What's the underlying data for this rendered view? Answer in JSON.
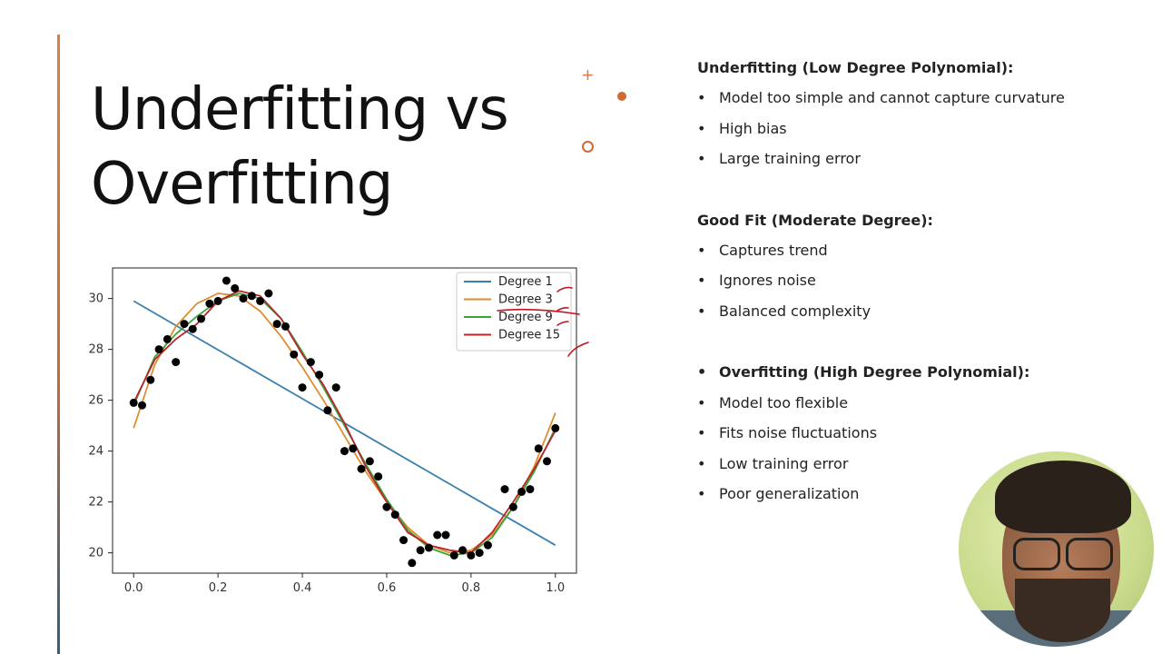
{
  "slide": {
    "title_line1": "Underfitting vs",
    "title_line2": "Overfitting"
  },
  "decorations": {
    "plus_icon": "+",
    "accent_color": "#d9824b"
  },
  "bullets": {
    "bullet_char": "•",
    "sections": [
      {
        "heading": "Underfitting (Low Degree Polynomial):",
        "items": [
          "Model too simple and cannot capture curvature",
          "High bias",
          "Large training error"
        ]
      },
      {
        "heading": "Good Fit (Moderate Degree):",
        "items": [
          "Captures trend",
          "Ignores noise",
          "Balanced complexity"
        ]
      },
      {
        "heading": "Overfitting (High Degree Polynomial):",
        "heading_is_bullet": true,
        "items": [
          "Model too flexible",
          "Fits noise fluctuations",
          "Low training error",
          "Poor generalization"
        ]
      }
    ]
  },
  "chart_data": {
    "type": "scatter",
    "title": "",
    "xlabel": "",
    "ylabel": "",
    "xlim": [
      -0.05,
      1.05
    ],
    "ylim": [
      19.2,
      31.2
    ],
    "x_ticks": [
      "0.0",
      "0.2",
      "0.4",
      "0.6",
      "0.8",
      "1.0"
    ],
    "y_ticks": [
      "20",
      "22",
      "24",
      "26",
      "28",
      "30"
    ],
    "legend_position": "top-right",
    "points": [
      {
        "x": 0.0,
        "y": 25.9
      },
      {
        "x": 0.02,
        "y": 25.8
      },
      {
        "x": 0.04,
        "y": 26.8
      },
      {
        "x": 0.06,
        "y": 28.0
      },
      {
        "x": 0.08,
        "y": 28.4
      },
      {
        "x": 0.1,
        "y": 27.5
      },
      {
        "x": 0.12,
        "y": 29.0
      },
      {
        "x": 0.14,
        "y": 28.8
      },
      {
        "x": 0.16,
        "y": 29.2
      },
      {
        "x": 0.18,
        "y": 29.8
      },
      {
        "x": 0.2,
        "y": 29.9
      },
      {
        "x": 0.22,
        "y": 30.7
      },
      {
        "x": 0.24,
        "y": 30.4
      },
      {
        "x": 0.26,
        "y": 30.0
      },
      {
        "x": 0.28,
        "y": 30.1
      },
      {
        "x": 0.3,
        "y": 29.9
      },
      {
        "x": 0.32,
        "y": 30.2
      },
      {
        "x": 0.34,
        "y": 29.0
      },
      {
        "x": 0.36,
        "y": 28.9
      },
      {
        "x": 0.38,
        "y": 27.8
      },
      {
        "x": 0.4,
        "y": 26.5
      },
      {
        "x": 0.42,
        "y": 27.5
      },
      {
        "x": 0.44,
        "y": 27.0
      },
      {
        "x": 0.46,
        "y": 25.6
      },
      {
        "x": 0.48,
        "y": 26.5
      },
      {
        "x": 0.5,
        "y": 24.0
      },
      {
        "x": 0.52,
        "y": 24.1
      },
      {
        "x": 0.54,
        "y": 23.3
      },
      {
        "x": 0.56,
        "y": 23.6
      },
      {
        "x": 0.58,
        "y": 23.0
      },
      {
        "x": 0.6,
        "y": 21.8
      },
      {
        "x": 0.62,
        "y": 21.5
      },
      {
        "x": 0.64,
        "y": 20.5
      },
      {
        "x": 0.66,
        "y": 19.6
      },
      {
        "x": 0.68,
        "y": 20.1
      },
      {
        "x": 0.7,
        "y": 20.2
      },
      {
        "x": 0.72,
        "y": 20.7
      },
      {
        "x": 0.74,
        "y": 20.7
      },
      {
        "x": 0.76,
        "y": 19.9
      },
      {
        "x": 0.78,
        "y": 20.1
      },
      {
        "x": 0.8,
        "y": 19.9
      },
      {
        "x": 0.82,
        "y": 20.0
      },
      {
        "x": 0.84,
        "y": 20.3
      },
      {
        "x": 0.88,
        "y": 22.5
      },
      {
        "x": 0.9,
        "y": 21.8
      },
      {
        "x": 0.92,
        "y": 22.4
      },
      {
        "x": 0.94,
        "y": 22.5
      },
      {
        "x": 0.96,
        "y": 24.1
      },
      {
        "x": 0.98,
        "y": 23.6
      },
      {
        "x": 1.0,
        "y": 24.9
      }
    ],
    "series": [
      {
        "name": "Degree 1",
        "color": "#3b80ad",
        "x": [
          0.0,
          1.0
        ],
        "y": [
          29.9,
          20.3
        ]
      },
      {
        "name": "Degree 3",
        "color": "#e08b2e",
        "x": [
          0.0,
          0.05,
          0.1,
          0.15,
          0.2,
          0.25,
          0.3,
          0.35,
          0.4,
          0.45,
          0.5,
          0.55,
          0.6,
          0.65,
          0.7,
          0.75,
          0.8,
          0.85,
          0.9,
          0.95,
          1.0
        ],
        "y": [
          24.9,
          27.4,
          28.9,
          29.8,
          30.2,
          30.1,
          29.5,
          28.5,
          27.3,
          26.0,
          24.6,
          23.2,
          22.0,
          21.0,
          20.3,
          20.0,
          20.1,
          20.7,
          21.8,
          23.4,
          25.5
        ]
      },
      {
        "name": "Degree 9",
        "color": "#3aa43a",
        "x": [
          0.0,
          0.05,
          0.1,
          0.15,
          0.2,
          0.25,
          0.3,
          0.35,
          0.4,
          0.45,
          0.5,
          0.55,
          0.6,
          0.65,
          0.7,
          0.75,
          0.8,
          0.85,
          0.9,
          0.95,
          1.0
        ],
        "y": [
          25.8,
          27.7,
          28.6,
          29.3,
          29.9,
          30.2,
          30.0,
          29.2,
          27.9,
          26.5,
          25.0,
          23.5,
          22.1,
          20.9,
          20.2,
          19.9,
          20.0,
          20.6,
          21.8,
          23.2,
          24.9
        ]
      },
      {
        "name": "Degree 15",
        "color": "#b8262e",
        "x": [
          0.0,
          0.05,
          0.1,
          0.15,
          0.2,
          0.25,
          0.3,
          0.35,
          0.4,
          0.45,
          0.5,
          0.55,
          0.6,
          0.65,
          0.7,
          0.75,
          0.8,
          0.85,
          0.9,
          0.95,
          1.0
        ],
        "y": [
          25.9,
          27.6,
          28.4,
          29.0,
          29.9,
          30.3,
          30.1,
          29.2,
          27.8,
          26.6,
          25.1,
          23.4,
          22.0,
          20.8,
          20.3,
          20.1,
          20.0,
          20.8,
          22.0,
          23.3,
          24.8
        ]
      }
    ]
  }
}
